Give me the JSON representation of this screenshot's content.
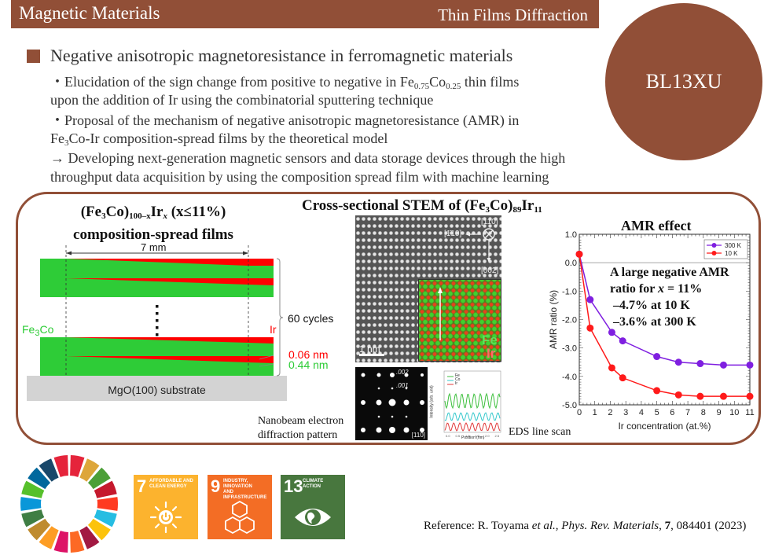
{
  "header": {
    "category": "Magnetic Materials",
    "technique": "Thin Films Diffraction"
  },
  "beamline": "BL13XU",
  "section": {
    "title": "Negative anisotropic magnetoresistance in ferromagnetic materials",
    "lines": [
      {
        "pre": "・Elucidation of the sign change from positive to negative in Fe",
        "sub1": "0.75",
        "mid": "Co",
        "sub2": "0.25",
        "post": " thin films"
      },
      {
        "text": "upon the addition of Ir using the combinatorial sputtering technique"
      },
      {
        "text": "・Proposal of the mechanism of negative anisotropic magnetoresistance (AMR) in"
      },
      {
        "pre": "Fe",
        "sub1": "3",
        "post": "Co-Ir composition-spread films by the theoretical model"
      },
      {
        "text": "→ Developing next-generation magnetic sensors and data storage devices through the high"
      },
      {
        "text": "throughput data acquisition by using the composition spread film with machine learning"
      }
    ]
  },
  "film_diagram": {
    "title_line1": {
      "a": "(Fe",
      "b": "3",
      "c": "Co)",
      "d": "100–x",
      "e": "Ir",
      "f": "x",
      "g": " (x≤11%)"
    },
    "title_line2": "composition-spread films",
    "width_label": "7 mm",
    "left_label": {
      "a": "Fe",
      "b": "3",
      "c": "Co"
    },
    "right_label": "Ir",
    "cycles_label": "60 cycles",
    "ir_thickness": "0.06 nm",
    "feco_thickness": "0.44 nm",
    "substrate_label": "MgO(100) substrate",
    "colors": {
      "feco": "#2ecc37",
      "ir": "#ff0000",
      "substrate": "#d3d3d3"
    }
  },
  "stem": {
    "title": {
      "a": "Cross-sectional STEM  of (Fe",
      "b": "3",
      "c": "Co)",
      "d": "89",
      "e": "Ir",
      "f": "11"
    },
    "axis_top": "[110]",
    "axis_left": "[1̄10]",
    "axis_down": "[002̄]",
    "scale_bar": "1 nm",
    "map_fe": "Fe",
    "map_ir": "Ir",
    "diffraction_spot_002": ".002",
    "diffraction_spot_001": ".001",
    "diffraction_zone": "[110]",
    "diffraction_caption_1": "Nanobeam electron",
    "diffraction_caption_2": "diffraction pattern",
    "eds_caption": "EDS line scan",
    "eds_legend": [
      "Fe",
      "Co",
      "Ir"
    ],
    "eds_ylabel": "Intensity (arb. unit)",
    "eds_xlabel": "Position (nm)",
    "eds_xticks": [
      "0.0",
      "0.5",
      "1.0",
      "1.5",
      "2.0",
      "2.5"
    ]
  },
  "chart_data": {
    "type": "line",
    "title": "AMR effect",
    "xlabel": "Ir concentration (at.%)",
    "ylabel": "AMR ratio (%)",
    "xlim": [
      0,
      11
    ],
    "ylim": [
      -5.0,
      1.0
    ],
    "xticks": [
      0,
      1,
      2,
      3,
      4,
      5,
      6,
      7,
      8,
      9,
      10,
      11
    ],
    "yticks": [
      "1.0",
      "0.0",
      "-1.0",
      "-2.0",
      "-3.0",
      "-4.0",
      "-5.0"
    ],
    "legend_position": "top-right",
    "zero_line": true,
    "series": [
      {
        "name": "300 K",
        "color": "#7f1fe0",
        "x": [
          0,
          0.7,
          2.1,
          2.8,
          5.0,
          6.4,
          7.8,
          9.3,
          11.0
        ],
        "y": [
          0.3,
          -1.3,
          -2.45,
          -2.75,
          -3.3,
          -3.5,
          -3.55,
          -3.6,
          -3.6
        ]
      },
      {
        "name": "10 K",
        "color": "#ff1a1a",
        "x": [
          0,
          0.7,
          2.1,
          2.8,
          5.0,
          6.4,
          7.8,
          9.3,
          11.0
        ],
        "y": [
          0.3,
          -2.3,
          -3.7,
          -4.05,
          -4.5,
          -4.65,
          -4.7,
          -4.7,
          -4.7
        ]
      }
    ],
    "annotation": {
      "line1": "A large negative AMR",
      "line2_pre": "ratio for ",
      "line2_var": "x",
      "line2_post": " = 11%",
      "line3": "–4.7% at 10 K",
      "line4": "–3.6% at 300 K"
    }
  },
  "sdg": {
    "wheel_colors": [
      "#e5243b",
      "#dda63a",
      "#4c9f38",
      "#c5192d",
      "#ff3a21",
      "#26bde2",
      "#fcc30b",
      "#a21942",
      "#fd6925",
      "#dd1367",
      "#fd9d24",
      "#bf8b2e",
      "#3f7e44",
      "#0a97d9",
      "#56c02b",
      "#00689d",
      "#19486a",
      "#e5243b"
    ],
    "goals": [
      {
        "number": "7",
        "label_1": "AFFORDABLE AND",
        "label_2": "CLEAN ENERGY",
        "color": "#fcb32e",
        "icon": "sun-power-icon"
      },
      {
        "number": "9",
        "label_1": "INDUSTRY, INNOVATION",
        "label_2": "AND INFRASTRUCTURE",
        "color": "#f36d25",
        "icon": "cubes-icon"
      },
      {
        "number": "13",
        "label_1": "CLIMATE",
        "label_2": "ACTION",
        "color": "#48773e",
        "icon": "eye-globe-icon"
      }
    ]
  },
  "reference": {
    "pre": "Reference: R. Toyama ",
    "etal": "et al.",
    "sep": ", ",
    "journal": "Phys. Rev. Materials",
    "comma": ", ",
    "volume": "7",
    "rest": ", 084401 (2023)"
  }
}
